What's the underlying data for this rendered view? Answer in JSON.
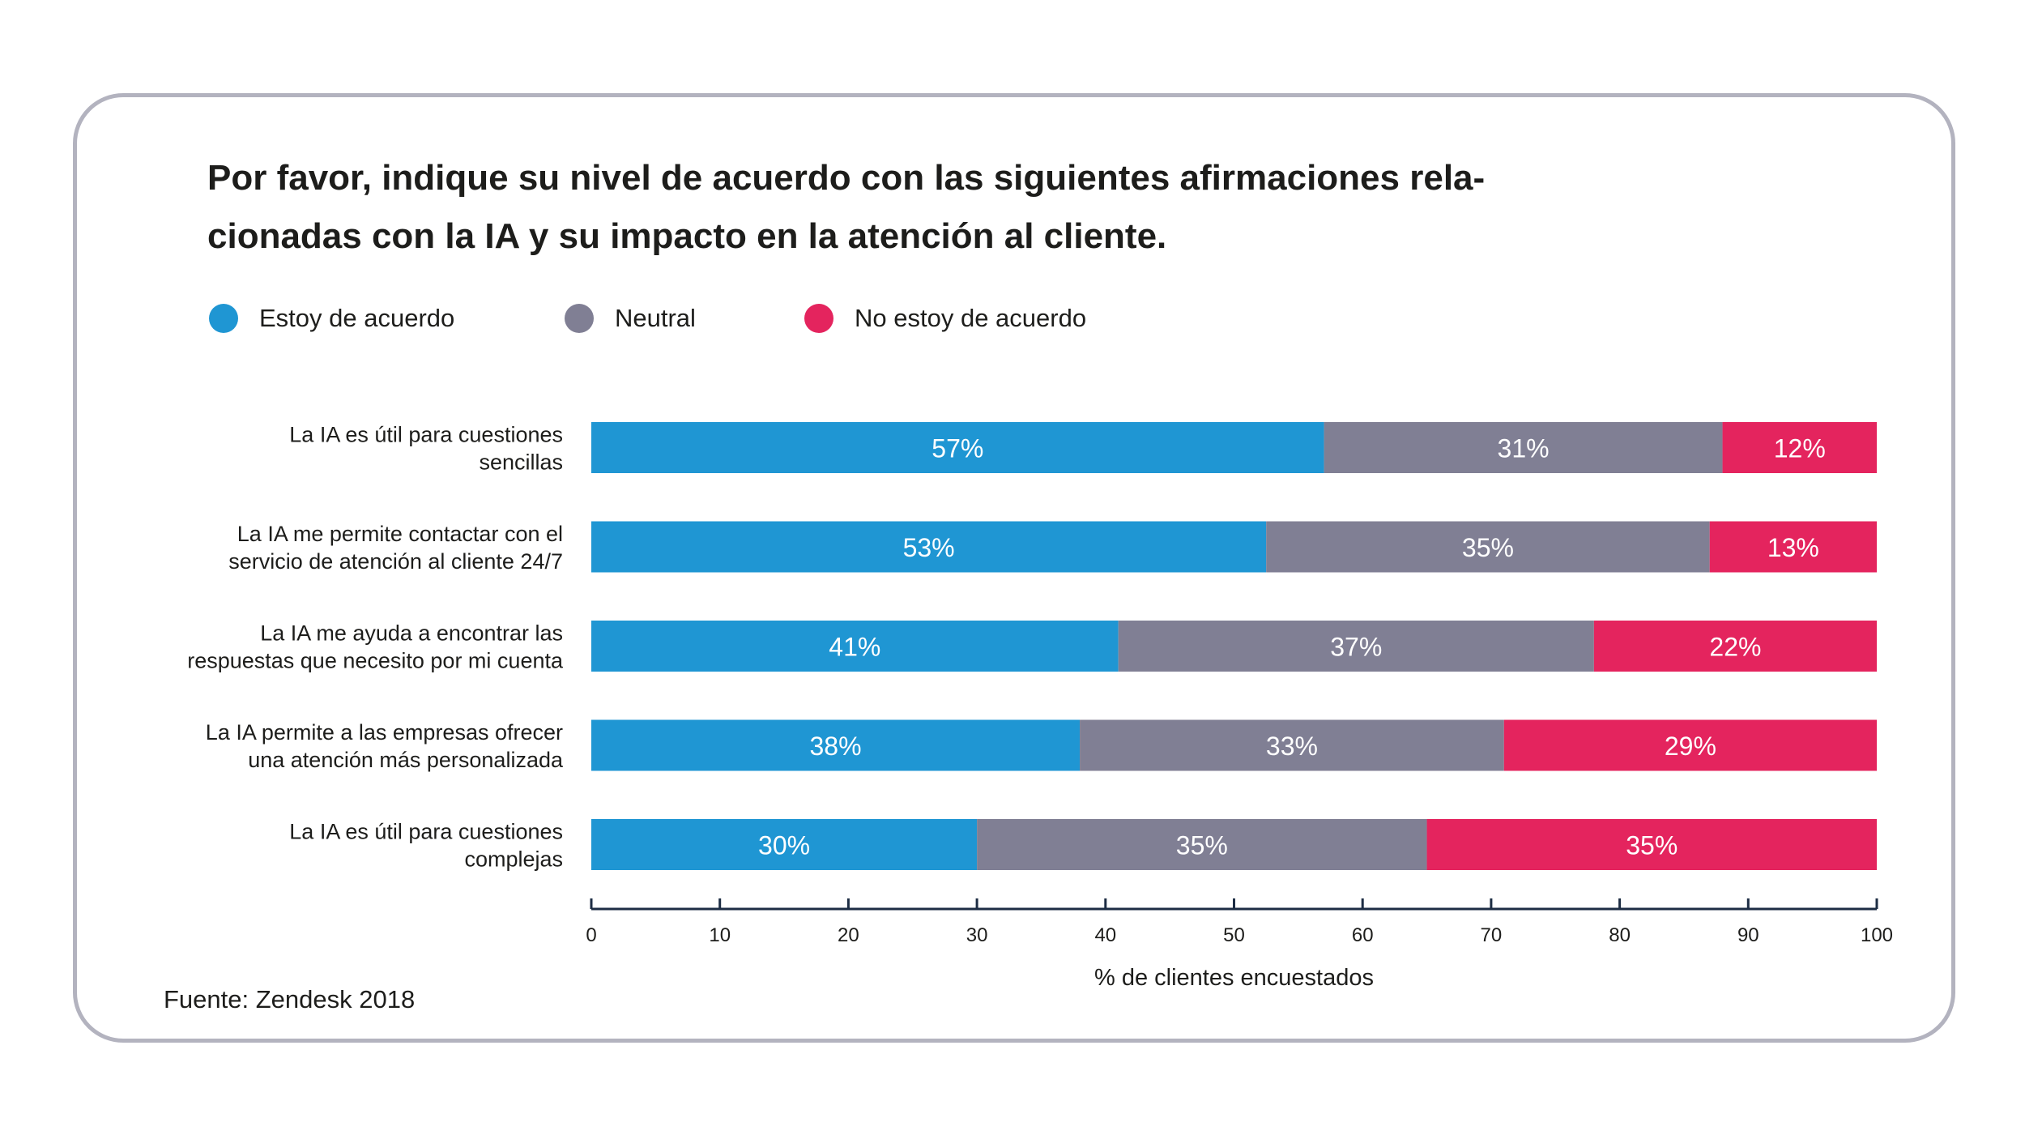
{
  "title_lines": [
    "Por favor, indique su nivel de acuerdo con las siguientes afirmaciones rela-",
    "cionadas con la IA y su impacto en la atención al cliente."
  ],
  "source": "Fuente: Zendesk 2018",
  "colors": {
    "agree": "#1f96d3",
    "neutral": "#807f94",
    "disagree": "#e4245e",
    "axis": "#1d2d44",
    "border": "#b3b3bf"
  },
  "chart_data": {
    "type": "bar",
    "orientation": "horizontal",
    "stacked": true,
    "title": "Por favor, indique su nivel de acuerdo con las siguientes afirmaciones relacionadas con la IA y su impacto en la atención al cliente.",
    "xlabel": "% de clientes encuestados",
    "ylabel": "",
    "xlim": [
      0,
      100
    ],
    "xticks": [
      "0",
      "10",
      "20",
      "30",
      "40",
      "50",
      "60",
      "70",
      "80",
      "90",
      "100"
    ],
    "legend_position": "top-left",
    "categories": [
      [
        "La IA es útil para cuestiones",
        "sencillas"
      ],
      [
        "La IA me permite contactar con el",
        "servicio de atención al cliente 24/7"
      ],
      [
        "La IA me ayuda a encontrar las",
        "respuestas que necesito por mi cuenta"
      ],
      [
        "La IA permite a las empresas ofrecer",
        "una atención más personalizada"
      ],
      [
        "La IA es útil para cuestiones",
        "complejas"
      ]
    ],
    "series": [
      {
        "name": "Estoy de acuerdo",
        "color": "#1f96d3",
        "values": [
          57,
          52.5,
          41,
          38,
          30
        ],
        "labels": [
          "57%",
          "53%",
          "41%",
          "38%",
          "30%"
        ]
      },
      {
        "name": "Neutral",
        "color": "#807f94",
        "values": [
          31,
          34.5,
          37,
          33,
          35
        ],
        "labels": [
          "31%",
          "35%",
          "37%",
          "33%",
          "35%"
        ]
      },
      {
        "name": "No estoy de acuerdo",
        "color": "#e4245e",
        "values": [
          12,
          13,
          22,
          29,
          35
        ],
        "labels": [
          "12%",
          "13%",
          "22%",
          "29%",
          "35%"
        ]
      }
    ]
  }
}
